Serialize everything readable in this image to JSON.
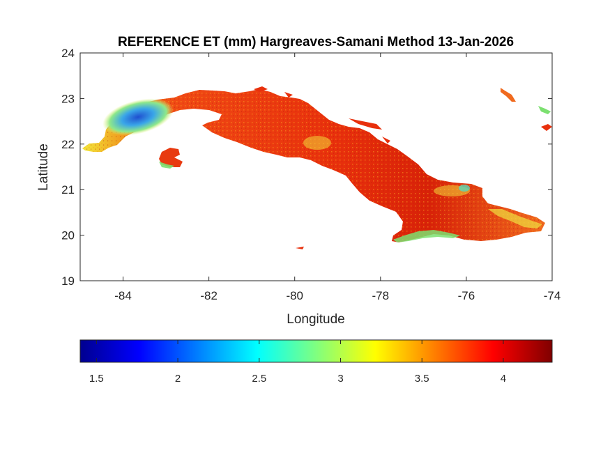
{
  "title": "REFERENCE ET (mm) Hargreaves-Samani Method  13-Jan-2026",
  "axes": {
    "xlabel": "Longitude",
    "ylabel": "Latitude",
    "xlim": [
      -85,
      -74
    ],
    "ylim": [
      19,
      24
    ],
    "xticks": [
      -84,
      -82,
      -80,
      -78,
      -76,
      -74
    ],
    "yticks": [
      19,
      20,
      21,
      22,
      23,
      24
    ],
    "xtick_labels": [
      "-84",
      "-82",
      "-80",
      "-78",
      "-76",
      "-74"
    ],
    "ytick_labels": [
      "19",
      "20",
      "21",
      "22",
      "23",
      "24"
    ]
  },
  "colorbar": {
    "colormap": "jet",
    "range": [
      1.4,
      4.3
    ],
    "ticks": [
      1.5,
      2,
      2.5,
      3,
      3.5,
      4
    ],
    "tick_labels": [
      "1.5",
      "2",
      "2.5",
      "3",
      "3.5",
      "4"
    ],
    "colors": [
      "#00008f",
      "#0000ff",
      "#00ffff",
      "#ffff00",
      "#ff0000",
      "#800000"
    ]
  },
  "map": {
    "region": "Cuba",
    "dominant_value_color": "#f0300a",
    "low_value_area_color": "#2a66d8"
  }
}
